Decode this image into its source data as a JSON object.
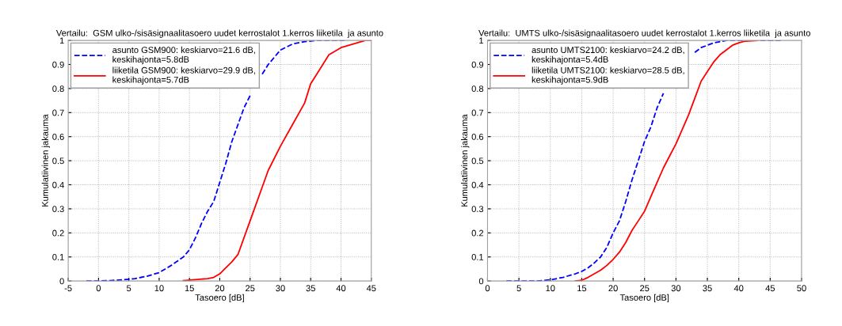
{
  "chart_data": [
    {
      "type": "line",
      "title": "Vertailu:  GSM ulko-/sisäsignaalitasoero uudet kerrostalot 1.kerros liiketila  ja asunto",
      "xlabel": "Tasoero [dB]",
      "ylabel": "Kumulatiivinen jakauma",
      "xlim": [
        -5,
        45
      ],
      "xticks": [
        -5,
        0,
        5,
        10,
        15,
        20,
        25,
        30,
        35,
        40,
        45
      ],
      "ylim": [
        0,
        1
      ],
      "yticks": [
        0,
        0.1,
        0.2,
        0.3,
        0.4,
        0.5,
        0.6,
        0.7,
        0.8,
        0.9,
        1
      ],
      "grid": true,
      "legend": "top left",
      "series": [
        {
          "name": "asunto GSM900: keskiarvo=21.6 dB,\nkeskihajonta=5.8dB",
          "color": "#0000ff",
          "line_style": "dashed",
          "x": [
            -2,
            0,
            2,
            4,
            6,
            8,
            10,
            12,
            14,
            15,
            16,
            17,
            18,
            19,
            20,
            21,
            22,
            23,
            24,
            25,
            26,
            27,
            28,
            30,
            32,
            34,
            36,
            38,
            41
          ],
          "values": [
            0,
            0,
            0.002,
            0.005,
            0.01,
            0.02,
            0.035,
            0.065,
            0.1,
            0.13,
            0.18,
            0.24,
            0.29,
            0.33,
            0.41,
            0.49,
            0.58,
            0.65,
            0.72,
            0.77,
            null,
            0.86,
            0.9,
            0.96,
            0.985,
            0.995,
            1.0,
            1.0,
            1.0
          ]
        },
        {
          "name": "liiketila GSM900: keskiarvo=29.9 dB,\nkeskihajonta=5.7dB",
          "color": "#ff0000",
          "line_style": "solid",
          "x": [
            14,
            16,
            18,
            19,
            20,
            21,
            22,
            23,
            24,
            25,
            26,
            27,
            28,
            30,
            32,
            34,
            35,
            36,
            38,
            40,
            42,
            44,
            45
          ],
          "values": [
            0.002,
            0.006,
            0.01,
            0.015,
            0.03,
            0.055,
            0.08,
            0.11,
            0.18,
            0.25,
            0.32,
            0.39,
            0.46,
            0.56,
            0.65,
            0.74,
            0.82,
            0.86,
            0.94,
            0.97,
            0.985,
            1.0,
            1.0
          ]
        }
      ]
    },
    {
      "type": "line",
      "title": "Vertailu:  UMTS ulko-/sisäsignaalitasoero uudet kerrostalot 1.kerros liiketila  ja asunto",
      "xlabel": "Tasoero [dB]",
      "ylabel": "Kumulatiivinen jakauma",
      "xlim": [
        0,
        50
      ],
      "xticks": [
        0,
        5,
        10,
        15,
        20,
        25,
        30,
        35,
        40,
        45,
        50
      ],
      "ylim": [
        0,
        1
      ],
      "yticks": [
        0,
        0.1,
        0.2,
        0.3,
        0.4,
        0.5,
        0.6,
        0.7,
        0.8,
        0.9,
        1
      ],
      "grid": true,
      "legend": "top left",
      "series": [
        {
          "name": "asunto UMTS2100: keskiarvo=24.2 dB,\nkeskihajonta=5.4dB",
          "color": "#0000ff",
          "line_style": "dashed",
          "x": [
            3,
            8,
            10,
            12,
            14,
            15,
            16,
            17,
            18,
            19,
            20,
            21,
            22,
            23,
            24,
            25,
            26,
            27,
            28,
            30,
            33,
            34,
            36,
            38,
            42,
            47
          ],
          "values": [
            0,
            0,
            0.005,
            0.015,
            0.03,
            0.04,
            0.055,
            0.075,
            0.1,
            0.14,
            0.2,
            0.25,
            0.33,
            0.42,
            0.5,
            0.58,
            0.64,
            0.72,
            0.78,
            null,
            0.95,
            0.97,
            0.99,
            1.0,
            1.0,
            1.0
          ]
        },
        {
          "name": "liiketila UMTS2100: keskiarvo=28.5 dB,\nkeskihajonta=5.9dB",
          "color": "#ff0000",
          "line_style": "solid",
          "x": [
            14,
            15,
            16,
            17,
            18,
            19,
            20,
            21,
            22,
            23,
            24,
            25,
            26,
            27,
            28,
            29,
            30,
            31,
            32,
            33,
            34,
            35,
            36,
            37,
            38,
            39,
            40,
            41,
            43
          ],
          "values": [
            0,
            0.003,
            0.015,
            0.03,
            0.045,
            0.065,
            0.09,
            0.12,
            0.16,
            0.21,
            0.25,
            0.29,
            0.35,
            0.41,
            0.47,
            0.52,
            0.57,
            0.63,
            0.69,
            0.76,
            0.83,
            0.87,
            0.91,
            0.94,
            0.96,
            0.98,
            0.99,
            0.997,
            1.0
          ]
        }
      ]
    }
  ]
}
